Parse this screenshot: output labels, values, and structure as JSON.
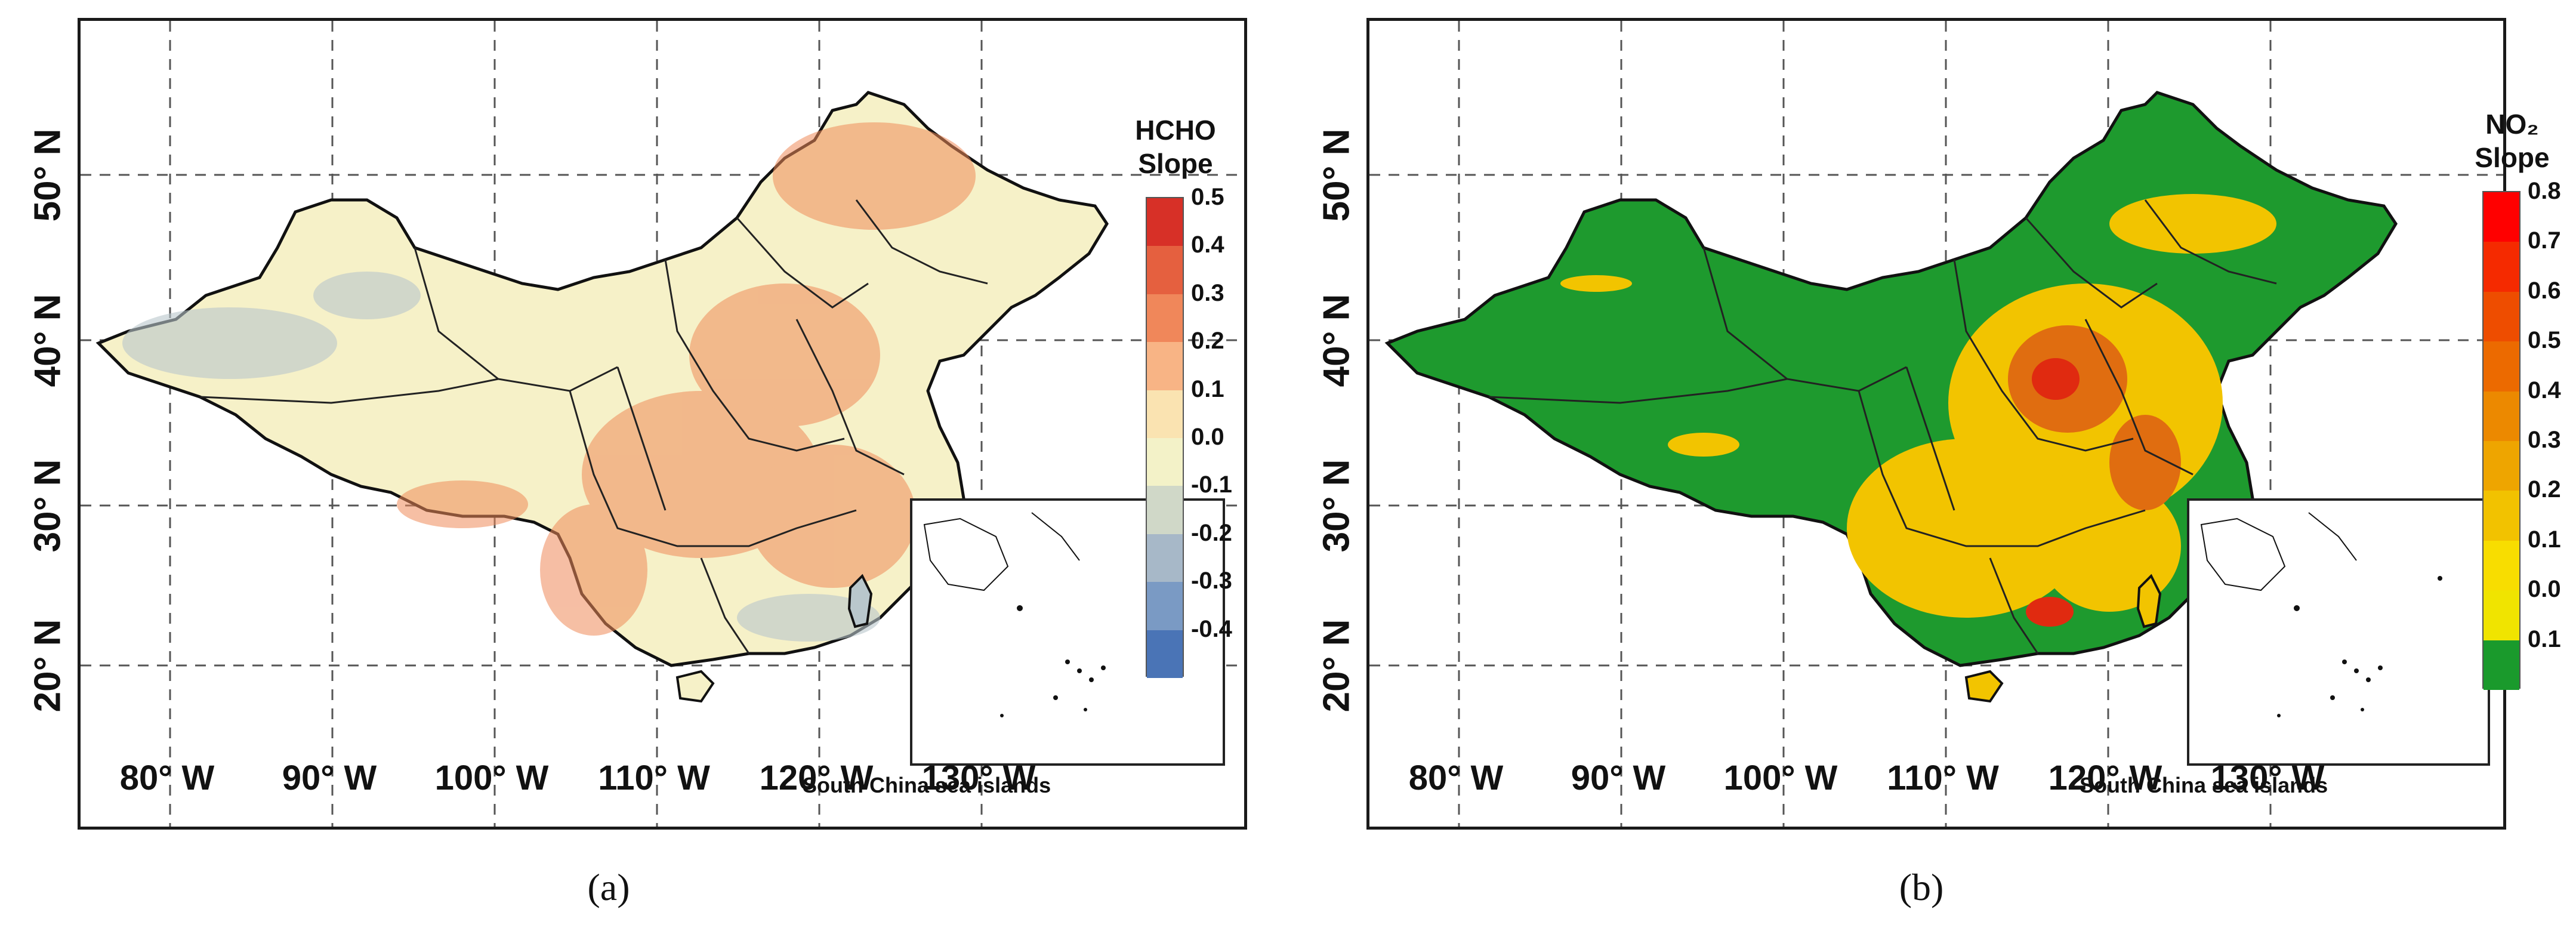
{
  "panels": [
    {
      "id": "a",
      "caption": "(a)",
      "legend_title_line1": "HCHO",
      "legend_title_line2": "Slope",
      "legend_ticks": [
        "0.5",
        "0.4",
        "0.3",
        "0.2",
        "0.1",
        "0.0",
        "-0.1",
        "-0.2",
        "-0.3",
        "-0.4"
      ],
      "legend_colors": [
        "#d73027",
        "#e5603f",
        "#f0875a",
        "#f8b485",
        "#fae3b1",
        "#f3f2c8",
        "#d0d8c8",
        "#a7b8c8",
        "#7a9ac4",
        "#4a74b6"
      ],
      "x_ticks": [
        "80°  W",
        "90°  W",
        "100°  W",
        "110°  W",
        "120°  W",
        "130°  W"
      ],
      "y_ticks": [
        "50°  N",
        "40°  N",
        "30°  N",
        "20°  N"
      ],
      "inset_caption": "South China sea  islands",
      "land_color": "#f6f1c8",
      "hotspot_color": "#ef8a5a",
      "cool_color": "#b9c7cc"
    },
    {
      "id": "b",
      "caption": "(b)",
      "legend_title_line1": "NO₂",
      "legend_title_line2": "Slope",
      "legend_ticks": [
        "0.8",
        "0.7",
        "0.6",
        "0.5",
        "0.4",
        "0.3",
        "0.2",
        "0.1",
        "0.0",
        "0.1"
      ],
      "legend_colors": [
        "#ff0000",
        "#f52a00",
        "#ee4d00",
        "#ec6a00",
        "#ec8900",
        "#eea500",
        "#f2c200",
        "#f8dd00",
        "#f0e400",
        "#1a9a2c"
      ],
      "x_ticks": [
        "80°  W",
        "90°  W",
        "100°  W",
        "110°  W",
        "120°  W",
        "130°  W"
      ],
      "y_ticks": [
        "50°  N",
        "40°  N",
        "30°  N",
        "20°  N"
      ],
      "inset_caption": "South China sea  islands",
      "land_color": "#1e9a2e",
      "hotspot_color": "#f2c400",
      "cool_color": "#e06d10"
    }
  ]
}
